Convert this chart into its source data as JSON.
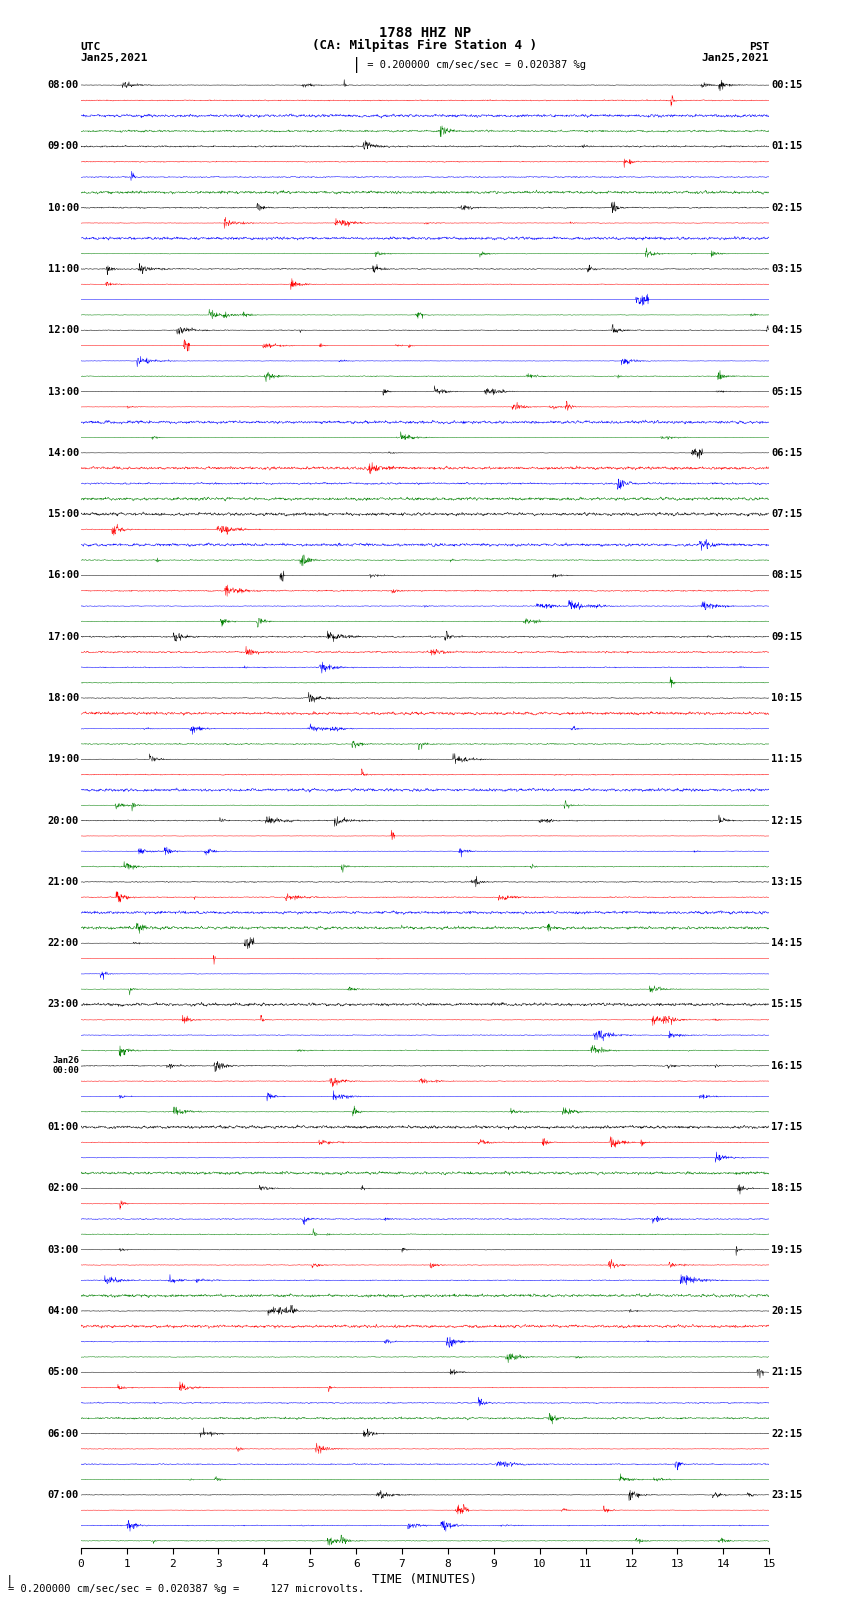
{
  "title_line1": "1788 HHZ NP",
  "title_line2": "(CA: Milpitas Fire Station 4 )",
  "left_label_top": "UTC",
  "left_label_date": "Jan25,2021",
  "right_label_top": "PST",
  "right_label_date": "Jan25,2021",
  "scale_text": "= 0.200000 cm/sec/sec = 0.020387 %g",
  "bottom_text": "= 0.200000 cm/sec/sec = 0.020387 %g =     127 microvolts.",
  "xlabel": "TIME (MINUTES)",
  "bg_color": "#ffffff",
  "trace_colors": [
    "black",
    "red",
    "blue",
    "green"
  ],
  "num_rows": 96,
  "minutes": 15,
  "left_times_utc": [
    "08:00",
    "",
    "",
    "",
    "09:00",
    "",
    "",
    "",
    "10:00",
    "",
    "",
    "",
    "11:00",
    "",
    "",
    "",
    "12:00",
    "",
    "",
    "",
    "13:00",
    "",
    "",
    "",
    "14:00",
    "",
    "",
    "",
    "15:00",
    "",
    "",
    "",
    "16:00",
    "",
    "",
    "",
    "17:00",
    "",
    "",
    "",
    "18:00",
    "",
    "",
    "",
    "19:00",
    "",
    "",
    "",
    "20:00",
    "",
    "",
    "",
    "21:00",
    "",
    "",
    "",
    "22:00",
    "",
    "",
    "",
    "23:00",
    "",
    "",
    "",
    "Jan26|00:00",
    "",
    "",
    "",
    "01:00",
    "",
    "",
    "",
    "02:00",
    "",
    "",
    "",
    "03:00",
    "",
    "",
    "",
    "04:00",
    "",
    "",
    "",
    "05:00",
    "",
    "",
    "",
    "06:00",
    "",
    "",
    "",
    "07:00",
    "",
    "",
    ""
  ],
  "right_times_pst": [
    "00:15",
    "",
    "",
    "",
    "01:15",
    "",
    "",
    "",
    "02:15",
    "",
    "",
    "",
    "03:15",
    "",
    "",
    "",
    "04:15",
    "",
    "",
    "",
    "05:15",
    "",
    "",
    "",
    "06:15",
    "",
    "",
    "",
    "07:15",
    "",
    "",
    "",
    "08:15",
    "",
    "",
    "",
    "09:15",
    "",
    "",
    "",
    "10:15",
    "",
    "",
    "",
    "11:15",
    "",
    "",
    "",
    "12:15",
    "",
    "",
    "",
    "13:15",
    "",
    "",
    "",
    "14:15",
    "",
    "",
    "",
    "15:15",
    "",
    "",
    "",
    "16:15",
    "",
    "",
    "",
    "17:15",
    "",
    "",
    "",
    "18:15",
    "",
    "",
    "",
    "19:15",
    "",
    "",
    "",
    "20:15",
    "",
    "",
    "",
    "21:15",
    "",
    "",
    "",
    "22:15",
    "",
    "",
    "",
    "23:15",
    "",
    "",
    ""
  ],
  "xticks": [
    0,
    1,
    2,
    3,
    4,
    5,
    6,
    7,
    8,
    9,
    10,
    11,
    12,
    13,
    14,
    15
  ],
  "figwidth": 8.5,
  "figheight": 16.13,
  "dpi": 100
}
